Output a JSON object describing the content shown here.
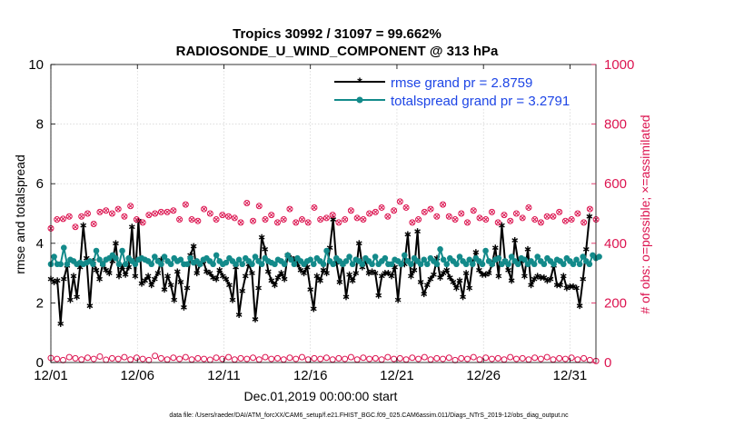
{
  "chart_data": {
    "type": "line",
    "title": "Tropics 30992 / 31097 = 99.662%",
    "subtitle": "RADIOSONDE_U_WIND_COMPONENT @ 313 hPa",
    "xlabel": "Dec.01,2019 00:00:00 start",
    "ylabel": "rmse and totalspread",
    "ylabel_right": "# of obs: o=possible; ×=assimilated",
    "footnote": "data file: /Users/raeder/DAI/ATM_forcXX/CAM6_setup/f.e21.FHIST_BGC.f09_025.CAM6assim.011/Diags_NTrS_2019-12/obs_diag_output.nc",
    "xlim": [
      0,
      31.5
    ],
    "ylim": [
      0,
      10
    ],
    "ylim_right": [
      0,
      1000
    ],
    "x_ticks": [
      0,
      5,
      10,
      15,
      20,
      25,
      30
    ],
    "x_tick_labels": [
      "12/01",
      "12/06",
      "12/11",
      "12/16",
      "12/21",
      "12/26",
      "12/31"
    ],
    "y_ticks": [
      0,
      2,
      4,
      6,
      8,
      10
    ],
    "y_tick_labels": [
      "0",
      "2",
      "4",
      "6",
      "8",
      "10"
    ],
    "y_right_ticks": [
      0,
      200,
      400,
      600,
      800,
      1000
    ],
    "y_right_tick_labels": [
      "0",
      "200",
      "400",
      "600",
      "800",
      "1000"
    ],
    "grid": true,
    "legend_position": "top-right",
    "series": [
      {
        "name": "rmse grand pr = 2.8759",
        "axis": "left",
        "color": "#000000",
        "marker": "asterisk",
        "values": [
          2.8,
          2.7,
          2.75,
          1.3,
          2.8,
          3.25,
          2.1,
          2.9,
          2.2,
          3.2,
          4.6,
          3.5,
          1.9,
          3.4,
          3.1,
          2.8,
          3.3,
          3.1,
          3.0,
          3.4,
          4.0,
          2.9,
          3.2,
          2.95,
          3.2,
          4.55,
          2.9,
          4.75,
          2.65,
          2.75,
          2.9,
          2.6,
          2.8,
          3.0,
          3.45,
          2.45,
          2.9,
          2.6,
          2.1,
          3.05,
          2.7,
          1.85,
          2.5,
          3.6,
          3.9,
          3.0,
          3.3,
          3.4,
          3.05,
          3.0,
          2.85,
          2.8,
          3.1,
          2.9,
          2.8,
          2.6,
          2.1,
          3.2,
          1.6,
          2.4,
          2.9,
          3.3,
          3.0,
          1.45,
          2.5,
          4.2,
          3.8,
          3.05,
          2.75,
          2.6,
          2.85,
          3.0,
          2.8,
          3.6,
          3.5,
          3.45,
          3.3,
          3.1,
          3.0,
          3.2,
          2.45,
          1.8,
          2.9,
          2.75,
          3.1,
          3.0,
          3.85,
          4.8,
          3.35,
          2.7,
          3.3,
          2.2,
          2.95,
          2.75,
          3.0,
          4.0,
          3.2,
          3.4,
          3.0,
          3.05,
          3.0,
          2.25,
          2.9,
          3.0,
          3.0,
          2.9,
          3.2,
          2.1,
          3.3,
          3.3,
          4.3,
          2.9,
          3.1,
          4.4,
          2.7,
          2.3,
          2.6,
          2.8,
          2.95,
          3.5,
          2.85,
          3.0,
          3.1,
          2.85,
          2.7,
          2.5,
          2.75,
          2.2,
          3.0,
          2.5,
          3.35,
          3.7,
          3.1,
          2.95,
          2.95,
          3.0,
          3.3,
          3.85,
          2.9,
          4.6,
          3.4,
          3.1,
          2.75,
          4.1,
          3.4,
          3.4,
          2.9,
          3.8,
          2.6,
          2.8,
          2.9,
          2.85,
          2.85,
          2.75,
          2.8,
          3.25,
          2.6,
          2.6,
          2.9,
          2.5,
          2.55,
          2.55,
          2.5,
          1.9,
          2.8,
          3.8,
          4.9
        ],
        "x_start": 0,
        "x_step": 0.1875
      },
      {
        "name": "totalspread grand pr = 3.2791",
        "axis": "left",
        "color": "#138a8a",
        "marker": "circle",
        "values": [
          3.3,
          3.55,
          3.3,
          3.3,
          3.85,
          3.3,
          3.45,
          3.4,
          3.3,
          3.35,
          3.3,
          3.35,
          3.4,
          3.3,
          3.75,
          3.45,
          3.3,
          3.45,
          3.5,
          3.6,
          3.5,
          3.3,
          3.75,
          3.3,
          3.5,
          3.4,
          3.3,
          3.45,
          3.5,
          3.45,
          3.4,
          3.3,
          3.55,
          3.4,
          3.3,
          3.55,
          3.4,
          3.3,
          3.5,
          3.4,
          3.45,
          3.3,
          3.3,
          3.5,
          3.35,
          3.4,
          3.3,
          3.45,
          3.5,
          3.4,
          3.3,
          3.6,
          3.4,
          3.3,
          3.35,
          3.5,
          3.4,
          3.3,
          3.45,
          3.3,
          3.5,
          3.4,
          3.3,
          3.55,
          3.4,
          3.3,
          3.5,
          3.4,
          3.35,
          3.3,
          3.45,
          3.4,
          3.3,
          3.6,
          3.45,
          3.3,
          3.5,
          3.4,
          3.3,
          3.4,
          3.45,
          3.3,
          3.5,
          3.4,
          3.3,
          3.75,
          3.4,
          3.3,
          3.5,
          3.4,
          3.3,
          3.4,
          3.55,
          3.3,
          3.45,
          3.4,
          3.3,
          3.5,
          3.4,
          3.3,
          3.55,
          3.3,
          3.4,
          3.5,
          3.3,
          3.3,
          3.45,
          3.4,
          3.3,
          3.6,
          3.4,
          3.3,
          3.5,
          3.4,
          3.3,
          3.45,
          3.3,
          3.5,
          3.4,
          3.3,
          3.8,
          3.45,
          3.3,
          3.5,
          3.4,
          3.3,
          3.55,
          3.4,
          3.3,
          3.45,
          3.3,
          3.5,
          3.4,
          3.3,
          3.75,
          3.4,
          3.3,
          3.45,
          3.5,
          3.3,
          3.4,
          3.3,
          3.55,
          3.4,
          3.3,
          3.5,
          3.45,
          3.3,
          3.4,
          3.3,
          3.55,
          3.4,
          3.3,
          3.5,
          3.4,
          3.3,
          3.45,
          3.4,
          3.3,
          3.5,
          3.4,
          3.3,
          3.45,
          3.3,
          3.55,
          3.4,
          3.3,
          3.6,
          3.5,
          3.55
        ],
        "x_start": 0,
        "x_step": 0.1875
      },
      {
        "name": "obs possible",
        "axis": "right",
        "color": "#dc1450",
        "marker": "circle",
        "values": [
          450,
          480,
          482,
          490,
          455,
          490,
          500,
          465,
          505,
          510,
          500,
          515,
          490,
          525,
          480,
          470,
          495,
          500,
          505,
          505,
          510,
          480,
          530,
          480,
          475,
          515,
          500,
          480,
          495,
          490,
          485,
          470,
          535,
          475,
          525,
          480,
          495,
          470,
          480,
          515,
          470,
          480,
          470,
          520,
          480,
          485,
          495,
          470,
          480,
          510,
          485,
          480,
          500,
          505,
          520,
          490,
          510,
          540,
          520,
          470,
          480,
          505,
          515,
          490,
          530,
          490,
          480,
          500,
          470,
          510,
          485,
          480,
          505,
          470,
          495,
          475,
          500,
          485,
          520,
          480,
          470,
          490,
          490,
          505,
          475,
          480,
          500,
          470,
          515,
          480
        ],
        "x_start": 0,
        "x_step": 0.354
      },
      {
        "name": "obs assimilated",
        "axis": "right",
        "color": "#dc1450",
        "marker": "x",
        "values": [
          450,
          480,
          482,
          490,
          455,
          490,
          500,
          465,
          505,
          510,
          500,
          515,
          490,
          525,
          480,
          470,
          495,
          500,
          505,
          505,
          510,
          480,
          530,
          480,
          475,
          515,
          500,
          480,
          495,
          490,
          485,
          470,
          535,
          475,
          525,
          480,
          495,
          470,
          480,
          515,
          470,
          480,
          470,
          520,
          480,
          485,
          495,
          470,
          480,
          510,
          485,
          480,
          500,
          505,
          520,
          490,
          510,
          540,
          520,
          470,
          480,
          505,
          515,
          490,
          530,
          490,
          480,
          500,
          470,
          510,
          485,
          480,
          505,
          470,
          495,
          475,
          500,
          485,
          520,
          480,
          470,
          490,
          490,
          505,
          475,
          480,
          500,
          470,
          515,
          480
        ],
        "x_start": 0,
        "x_step": 0.354
      },
      {
        "name": "obs possible (low)",
        "axis": "right",
        "color": "#dc1450",
        "marker": "circle",
        "values": [
          15,
          12,
          8,
          18,
          14,
          10,
          16,
          12,
          20,
          9,
          14,
          12,
          18,
          10,
          16,
          12,
          8,
          22,
          14,
          10,
          16,
          12,
          18,
          10,
          14,
          12,
          9,
          16,
          12,
          18,
          10,
          14,
          12,
          16,
          10,
          18,
          12,
          14,
          10,
          16,
          12,
          18,
          10,
          14,
          12,
          16,
          10,
          14,
          12,
          18,
          10,
          16,
          12,
          14,
          10,
          18,
          12,
          14,
          10,
          16,
          12,
          18,
          10,
          14,
          12,
          16,
          8,
          14,
          12,
          18,
          10,
          16,
          12,
          14,
          10,
          18,
          12,
          14,
          10,
          16,
          12,
          18,
          10,
          14,
          12,
          16,
          10,
          14,
          8,
          5
        ],
        "x_start": 0,
        "x_step": 0.354
      }
    ],
    "legend": [
      {
        "label": "rmse grand pr = 2.8759"
      },
      {
        "label": "totalspread grand pr = 3.2791"
      }
    ]
  }
}
